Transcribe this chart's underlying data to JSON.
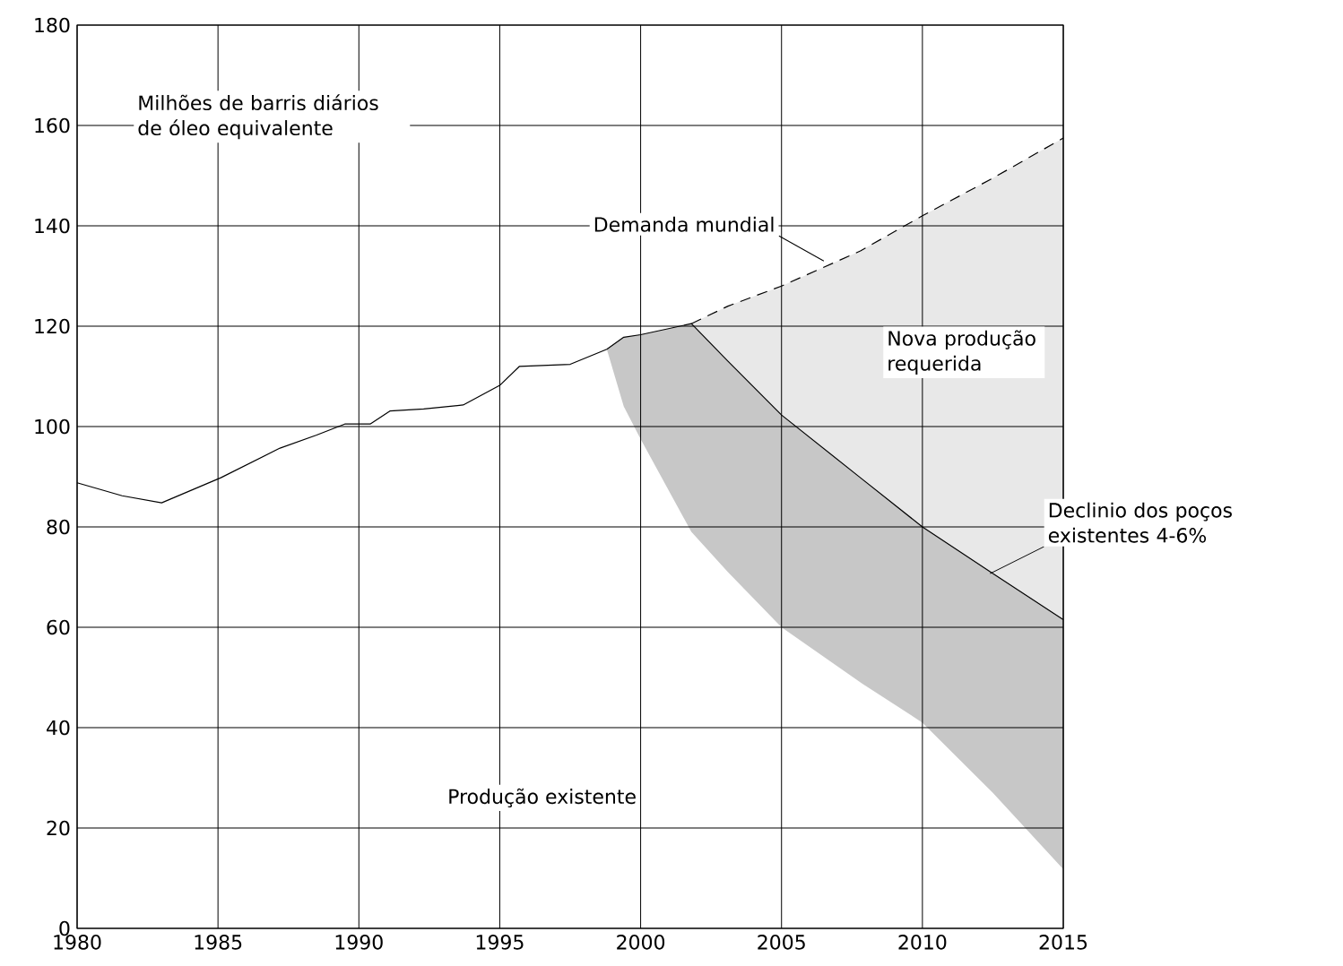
{
  "chart_data": {
    "type": "line",
    "xlim": [
      1980,
      2015
    ],
    "ylim": [
      0,
      180
    ],
    "xticks": [
      1980,
      1985,
      1990,
      1995,
      2000,
      2005,
      2010,
      2015
    ],
    "yticks": [
      0,
      20,
      40,
      60,
      80,
      100,
      120,
      140,
      160,
      180
    ],
    "grid": true,
    "marker": "none",
    "series": [
      {
        "color": "#000000",
        "line_style": "solid",
        "x": [
          1980,
          1981.6,
          1983,
          1985.1,
          1987.2,
          1988.5,
          1989.5,
          1990.4,
          1991.1,
          1992.3,
          1993.7,
          1995,
          1995.7,
          1997.5,
          1998.8,
          1999.4,
          2000,
          2001.8,
          2003.1,
          2005,
          2007.8,
          2010,
          2012.5,
          2015
        ],
        "values": [
          88.8,
          86.2,
          84.8,
          89.8,
          95.7,
          98.3,
          100.5,
          100.5,
          103.1,
          103.5,
          104.3,
          108.2,
          112,
          112.4,
          115.4,
          117.8,
          118.3,
          120.5,
          113,
          102.3,
          89.8,
          80,
          70.7,
          61.5
        ],
        "upper": [
          null,
          null,
          null,
          null,
          null,
          null,
          null,
          null,
          null,
          null,
          null,
          null,
          null,
          null,
          115.4,
          117.8,
          118.3,
          120.5,
          113,
          102.3,
          89.8,
          80,
          70.7,
          61.5
        ],
        "lower": [
          null,
          null,
          null,
          null,
          null,
          null,
          null,
          null,
          null,
          null,
          null,
          null,
          null,
          null,
          115.4,
          104,
          97.5,
          79,
          71,
          60,
          49,
          41,
          27,
          11.8
        ]
      },
      {
        "color": "#000000",
        "line_style": "dashed",
        "x": [
          2001.8,
          2003.1,
          2005,
          2007.8,
          2010,
          2012.5,
          2015
        ],
        "values": [
          120.5,
          124,
          128,
          135,
          142,
          149.5,
          157.5
        ],
        "upper": [
          120.5,
          124,
          128,
          135,
          142,
          149.5,
          157.5
        ],
        "lower": [
          120.5,
          113,
          102.3,
          89.8,
          80,
          70.7,
          61.5
        ]
      }
    ],
    "annotations": [
      "Milhões de barris diários de óleo equivalente",
      {
        "text": "Demanda mundial",
        "x": 2006.5,
        "y": 133
      },
      "Nova produção requerida",
      {
        "text": "Declinio dos poços existentes 4-6%",
        "x": 2012.4,
        "y": 70.7
      },
      "Produção existente"
    ]
  }
}
